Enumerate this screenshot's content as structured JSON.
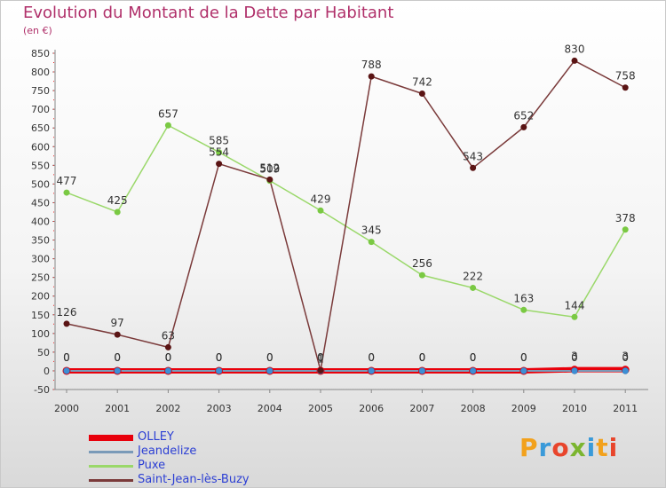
{
  "header": {
    "title": "Evolution du Montant de la Dette par Habitant",
    "unit": "(en €)"
  },
  "logo": {
    "text": "Proxiti",
    "colors": [
      "#f2a11c",
      "#3a9ad9",
      "#e8452c",
      "#7bb52f",
      "#3a9ad9",
      "#f2a11c",
      "#e8452c"
    ]
  },
  "chart_data": {
    "type": "line",
    "title": "Evolution du Montant de la Dette par Habitant",
    "ylabel": "(en €)",
    "x": [
      "2000",
      "2001",
      "2002",
      "2003",
      "2004",
      "2005",
      "2006",
      "2007",
      "2008",
      "2009",
      "2010",
      "2011"
    ],
    "ylim": [
      -50,
      850
    ],
    "yticks": [
      -50,
      0,
      50,
      100,
      150,
      200,
      250,
      300,
      350,
      400,
      450,
      500,
      550,
      600,
      650,
      700,
      750,
      800,
      850
    ],
    "grid": false,
    "legend_position": "bottom-left",
    "series": [
      {
        "name": "OLLEY",
        "color": "#e8000b",
        "marker": "#e8000b",
        "width": 6,
        "values": [
          0,
          0,
          0,
          0,
          0,
          0,
          0,
          0,
          0,
          0,
          3,
          3
        ],
        "labels": [
          "0",
          "0",
          "0",
          "0",
          "0",
          "0",
          "0",
          "0",
          "0",
          "0",
          "3",
          "3"
        ]
      },
      {
        "name": "Jeandelize",
        "color": "#7a9ab8",
        "marker": "#3d8fd6",
        "width": 2,
        "values": [
          0,
          0,
          0,
          0,
          0,
          0,
          0,
          0,
          0,
          0,
          0,
          0
        ],
        "labels": [
          "0",
          "0",
          "0",
          "0",
          "0",
          "0",
          "0",
          "0",
          "0",
          "0",
          "0",
          "0"
        ]
      },
      {
        "name": "Puxe",
        "color": "#9ad86a",
        "marker": "#7ac943",
        "width": 1.5,
        "values": [
          477,
          425,
          657,
          585,
          509,
          429,
          345,
          256,
          222,
          163,
          144,
          378
        ],
        "labels": [
          "477",
          "425",
          "657",
          "585",
          "509",
          "429",
          "345",
          "256",
          "222",
          "163",
          "144",
          "378"
        ]
      },
      {
        "name": "Saint-Jean-lès-Buzy",
        "color": "#7a3a3a",
        "marker": "#5a1414",
        "width": 1.5,
        "values": [
          126,
          97,
          63,
          554,
          512,
          1,
          788,
          742,
          543,
          652,
          830,
          758
        ],
        "labels": [
          "126",
          "97",
          "63",
          "554",
          "512",
          "1",
          "788",
          "742",
          "543",
          "652",
          "830",
          "758"
        ]
      }
    ]
  }
}
